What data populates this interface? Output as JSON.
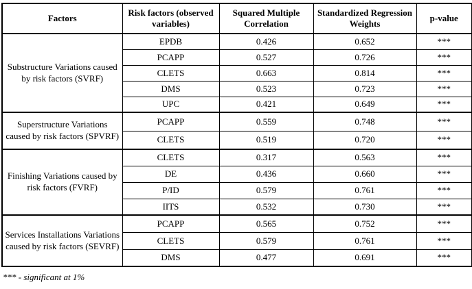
{
  "colors": {
    "border": "#000000",
    "text": "#000000",
    "background": "#ffffff"
  },
  "table": {
    "headers": [
      "Factors",
      "Risk factors (observed variables)",
      "Squared Multiple Correlation",
      "Standardized Regression Weights",
      "p-value"
    ],
    "groups": [
      {
        "factor": "Substructure Variations caused by risk factors (SVRF)",
        "rows": [
          {
            "variable": "EPDB",
            "squared_multiple_correlation": "0.426",
            "standardized_regression_weight": "0.652",
            "p_value": "***"
          },
          {
            "variable": "PCAPP",
            "squared_multiple_correlation": "0.527",
            "standardized_regression_weight": "0.726",
            "p_value": "***"
          },
          {
            "variable": "CLETS",
            "squared_multiple_correlation": "0.663",
            "standardized_regression_weight": "0.814",
            "p_value": "***"
          },
          {
            "variable": "DMS",
            "squared_multiple_correlation": "0.523",
            "standardized_regression_weight": "0.723",
            "p_value": "***"
          },
          {
            "variable": "UPC",
            "squared_multiple_correlation": "0.421",
            "standardized_regression_weight": "0.649",
            "p_value": "***"
          }
        ]
      },
      {
        "factor": "Superstructure Variations caused by risk factors (SPVRF)",
        "rows": [
          {
            "variable": "PCAPP",
            "squared_multiple_correlation": "0.559",
            "standardized_regression_weight": "0.748",
            "p_value": "***"
          },
          {
            "variable": "CLETS",
            "squared_multiple_correlation": "0.519",
            "standardized_regression_weight": "0.720",
            "p_value": "***"
          }
        ]
      },
      {
        "factor": "Finishing Variations caused by risk factors (FVRF)",
        "rows": [
          {
            "variable": "CLETS",
            "squared_multiple_correlation": "0.317",
            "standardized_regression_weight": "0.563",
            "p_value": "***"
          },
          {
            "variable": "DE",
            "squared_multiple_correlation": "0.436",
            "standardized_regression_weight": "0.660",
            "p_value": "***"
          },
          {
            "variable": "P/ID",
            "squared_multiple_correlation": "0.579",
            "standardized_regression_weight": "0.761",
            "p_value": "***"
          },
          {
            "variable": "IITS",
            "squared_multiple_correlation": "0.532",
            "standardized_regression_weight": "0.730",
            "p_value": "***"
          }
        ]
      },
      {
        "factor": "Services Installations Variations caused by risk factors (SEVRF)",
        "rows": [
          {
            "variable": "PCAPP",
            "squared_multiple_correlation": "0.565",
            "standardized_regression_weight": "0.752",
            "p_value": "***"
          },
          {
            "variable": "CLETS",
            "squared_multiple_correlation": "0.579",
            "standardized_regression_weight": "0.761",
            "p_value": "***"
          },
          {
            "variable": "DMS",
            "squared_multiple_correlation": "0.477",
            "standardized_regression_weight": "0.691",
            "p_value": "***"
          }
        ]
      }
    ]
  },
  "footnote": "*** - significant at 1%"
}
